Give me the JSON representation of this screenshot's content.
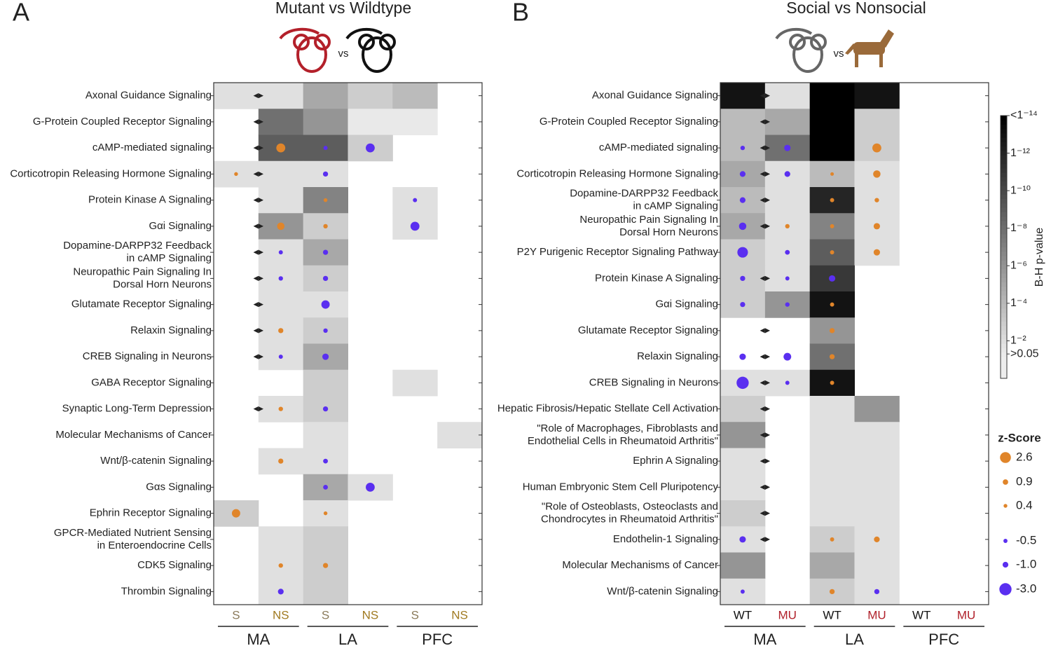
{
  "chart_data": [
    {
      "type": "heatmap",
      "panel": "A",
      "title": "Mutant vs Wildtype",
      "vs": "vs",
      "columns": [
        {
          "name": "S",
          "color": "#8a7a5a"
        },
        {
          "name": "NS",
          "color": "#a07a20"
        },
        {
          "name": "S",
          "color": "#8a7a5a"
        },
        {
          "name": "NS",
          "color": "#a07a20"
        },
        {
          "name": "S",
          "color": "#8a7a5a"
        },
        {
          "name": "NS",
          "color": "#a07a20"
        }
      ],
      "groups": [
        "MA",
        "LA",
        "PFC"
      ],
      "rows": [
        {
          "label": [
            "Axonal Guidance Signaling"
          ],
          "arrow": true,
          "pvalues": [
            2,
            2,
            5,
            3,
            4,
            null
          ],
          "zscores": [
            null,
            null,
            null,
            null,
            null,
            null
          ]
        },
        {
          "label": [
            "G-Protein Coupled Receptor Signaling"
          ],
          "arrow": true,
          "pvalues": [
            null,
            8,
            6,
            1.5,
            1.5,
            null
          ],
          "zscores": [
            null,
            null,
            null,
            null,
            null,
            null
          ]
        },
        {
          "label": [
            "cAMP-mediated signaling"
          ],
          "arrow": true,
          "pvalues": [
            null,
            9,
            9,
            3,
            null,
            null
          ],
          "zscores": [
            null,
            2.0,
            -0.5,
            -2.0,
            null,
            null
          ]
        },
        {
          "label": [
            "Corticotropin Releasing Hormone Signaling"
          ],
          "arrow": true,
          "pvalues": [
            2,
            2,
            2,
            null,
            null,
            null
          ],
          "zscores": [
            0.4,
            null,
            -0.8,
            null,
            null,
            null
          ]
        },
        {
          "label": [
            "Protein Kinase A Signaling"
          ],
          "arrow": true,
          "pvalues": [
            null,
            2,
            7,
            null,
            2,
            null
          ],
          "zscores": [
            null,
            null,
            0.4,
            null,
            -0.5,
            null
          ]
        },
        {
          "label": [
            "Gαi Signaling"
          ],
          "arrow": true,
          "pvalues": [
            null,
            6,
            3,
            null,
            2,
            null
          ],
          "zscores": [
            null,
            1.5,
            0.6,
            null,
            -2.0,
            null
          ]
        },
        {
          "label": [
            "Dopamine-DARPP32 Feedback",
            "in cAMP Signaling"
          ],
          "arrow": true,
          "pvalues": [
            null,
            2,
            5,
            null,
            null,
            null
          ],
          "zscores": [
            null,
            -0.5,
            -0.8,
            null,
            null,
            null
          ]
        },
        {
          "label": [
            "Neuropathic Pain Signaling In",
            "Dorsal Horn Neurons"
          ],
          "arrow": true,
          "pvalues": [
            null,
            2,
            3,
            null,
            null,
            null
          ],
          "zscores": [
            null,
            -0.6,
            -0.8,
            null,
            null,
            null
          ]
        },
        {
          "label": [
            "Glutamate Receptor Signaling"
          ],
          "arrow": true,
          "pvalues": [
            null,
            2,
            2,
            null,
            null,
            null
          ],
          "zscores": [
            null,
            null,
            -1.8,
            null,
            null,
            null
          ]
        },
        {
          "label": [
            "Relaxin Signaling"
          ],
          "arrow": true,
          "pvalues": [
            null,
            2,
            3,
            null,
            null,
            null
          ],
          "zscores": [
            null,
            0.8,
            -0.6,
            null,
            null,
            null
          ]
        },
        {
          "label": [
            "CREB Signaling in Neurons"
          ],
          "arrow": true,
          "pvalues": [
            null,
            2,
            5,
            null,
            null,
            null
          ],
          "zscores": [
            null,
            -0.5,
            -1.2,
            null,
            null,
            null
          ]
        },
        {
          "label": [
            "GABA Receptor Signaling"
          ],
          "arrow": false,
          "pvalues": [
            null,
            null,
            3,
            null,
            2,
            null
          ],
          "zscores": [
            null,
            null,
            null,
            null,
            null,
            null
          ]
        },
        {
          "label": [
            "Synaptic Long-Term Depression"
          ],
          "arrow": true,
          "pvalues": [
            null,
            2,
            3,
            null,
            null,
            null
          ],
          "zscores": [
            null,
            0.6,
            -0.8,
            null,
            null,
            null
          ]
        },
        {
          "label": [
            "Molecular Mechanisms of Cancer"
          ],
          "arrow": false,
          "pvalues": [
            null,
            null,
            2,
            null,
            null,
            2
          ],
          "zscores": [
            null,
            null,
            null,
            null,
            null,
            null
          ]
        },
        {
          "label": [
            "Wnt/β-catenin Signaling"
          ],
          "arrow": false,
          "pvalues": [
            null,
            2,
            2,
            null,
            null,
            null
          ],
          "zscores": [
            null,
            0.8,
            -0.7,
            null,
            null,
            null
          ]
        },
        {
          "label": [
            "Gαs Signaling"
          ],
          "arrow": false,
          "pvalues": [
            null,
            null,
            5,
            2,
            null,
            null
          ],
          "zscores": [
            null,
            null,
            -0.7,
            -2.0,
            null,
            null
          ]
        },
        {
          "label": [
            "Ephrin Receptor Signaling"
          ],
          "arrow": false,
          "pvalues": [
            3,
            null,
            2,
            null,
            null,
            null
          ],
          "zscores": [
            1.8,
            null,
            0.4,
            null,
            null,
            null
          ]
        },
        {
          "label": [
            "GPCR-Mediated Nutrient Sensing",
            "in Enteroendocrine Cells"
          ],
          "arrow": false,
          "pvalues": [
            null,
            2,
            3,
            null,
            null,
            null
          ],
          "zscores": [
            null,
            null,
            null,
            null,
            null,
            null
          ]
        },
        {
          "label": [
            "CDK5 Signaling"
          ],
          "arrow": false,
          "pvalues": [
            null,
            2,
            3,
            null,
            null,
            null
          ],
          "zscores": [
            null,
            0.6,
            0.8,
            null,
            null,
            null
          ]
        },
        {
          "label": [
            "Thrombin Signaling"
          ],
          "arrow": false,
          "pvalues": [
            null,
            2,
            3,
            null,
            null,
            null
          ],
          "zscores": [
            null,
            -1.0,
            null,
            null,
            null,
            null
          ]
        }
      ]
    },
    {
      "type": "heatmap",
      "panel": "B",
      "title": "Social vs Nonsocial",
      "vs": "vs",
      "columns": [
        {
          "name": "WT",
          "color": "#111111"
        },
        {
          "name": "MU",
          "color": "#b0202a"
        },
        {
          "name": "WT",
          "color": "#111111"
        },
        {
          "name": "MU",
          "color": "#b0202a"
        },
        {
          "name": "WT",
          "color": "#111111"
        },
        {
          "name": "MU",
          "color": "#b0202a"
        }
      ],
      "groups": [
        "MA",
        "LA",
        "PFC"
      ],
      "rows": [
        {
          "label": [
            "Axonal Guidance Signaling"
          ],
          "arrow": true,
          "pvalues": [
            13,
            2,
            14,
            13,
            null,
            null
          ],
          "zscores": [
            null,
            null,
            null,
            null,
            null,
            null
          ]
        },
        {
          "label": [
            "G-Protein Coupled Receptor Signaling"
          ],
          "arrow": true,
          "pvalues": [
            4,
            5,
            14,
            3,
            null,
            null
          ],
          "zscores": [
            null,
            null,
            null,
            null,
            null,
            null
          ]
        },
        {
          "label": [
            "cAMP-mediated signaling"
          ],
          "arrow": true,
          "pvalues": [
            4,
            8,
            14,
            3,
            null,
            null
          ],
          "zscores": [
            -0.6,
            -1.2,
            null,
            2.0,
            null,
            null
          ]
        },
        {
          "label": [
            "Corticotropin Releasing Hormone Signaling"
          ],
          "arrow": true,
          "pvalues": [
            5,
            2,
            4,
            2,
            null,
            null
          ],
          "zscores": [
            -1.0,
            -1.0,
            0.3,
            1.5,
            null,
            null
          ]
        },
        {
          "label": [
            "Dopamine-DARPP32 Feedback",
            "in cAMP Signaling"
          ],
          "arrow": true,
          "pvalues": [
            4,
            2,
            12,
            2,
            null,
            null
          ],
          "zscores": [
            -1.0,
            null,
            0.5,
            0.6,
            null,
            null
          ]
        },
        {
          "label": [
            "Neuropathic Pain Signaling In",
            "Dorsal Horn Neurons"
          ],
          "arrow": true,
          "pvalues": [
            5,
            2,
            7,
            2,
            null,
            null
          ],
          "zscores": [
            -1.5,
            0.6,
            0.5,
            1.2,
            null,
            null
          ]
        },
        {
          "label": [
            "P2Y Purigenic Receptor Signaling Pathway"
          ],
          "arrow": false,
          "pvalues": [
            3,
            2,
            9,
            2,
            null,
            null
          ],
          "zscores": [
            -2.5,
            -0.7,
            0.5,
            1.2,
            null,
            null
          ]
        },
        {
          "label": [
            "Protein Kinase A Signaling"
          ],
          "arrow": true,
          "pvalues": [
            3,
            2,
            11,
            null,
            null,
            null
          ],
          "zscores": [
            -0.8,
            -0.5,
            -1.2,
            null,
            null,
            null
          ]
        },
        {
          "label": [
            "Gαi Signaling"
          ],
          "arrow": false,
          "pvalues": [
            3,
            6,
            13,
            null,
            null,
            null
          ],
          "zscores": [
            -0.8,
            -0.6,
            0.5,
            null,
            null,
            null
          ]
        },
        {
          "label": [
            "Glutamate Receptor Signaling"
          ],
          "arrow": true,
          "pvalues": [
            null,
            null,
            6,
            null,
            null,
            null
          ],
          "zscores": [
            null,
            null,
            0.8,
            null,
            null,
            null
          ]
        },
        {
          "label": [
            "Relaxin Signaling"
          ],
          "arrow": true,
          "pvalues": [
            null,
            null,
            8,
            null,
            null,
            null
          ],
          "zscores": [
            -1.2,
            -1.6,
            0.8,
            null,
            null,
            null
          ]
        },
        {
          "label": [
            "CREB Signaling in Neurons"
          ],
          "arrow": true,
          "pvalues": [
            2,
            2,
            13,
            null,
            null,
            null
          ],
          "zscores": [
            -3.0,
            -0.5,
            0.5,
            null,
            null,
            null
          ]
        },
        {
          "label": [
            "Hepatic Fibrosis/Hepatic Stellate Cell Activation"
          ],
          "arrow": true,
          "pvalues": [
            3,
            null,
            2,
            6,
            null,
            null
          ],
          "zscores": [
            null,
            null,
            null,
            null,
            null,
            null
          ]
        },
        {
          "label": [
            "\"Role of Macrophages, Fibroblasts and",
            "Endothelial Cells in Rheumatoid Arthritis\""
          ],
          "arrow": true,
          "pvalues": [
            6,
            null,
            2,
            2,
            null,
            null
          ],
          "zscores": [
            null,
            null,
            null,
            null,
            null,
            null
          ]
        },
        {
          "label": [
            "Ephrin A Signaling"
          ],
          "arrow": true,
          "pvalues": [
            2,
            null,
            2,
            2,
            null,
            null
          ],
          "zscores": [
            null,
            null,
            null,
            null,
            null,
            null
          ]
        },
        {
          "label": [
            "Human Embryonic Stem Cell Pluripotency"
          ],
          "arrow": true,
          "pvalues": [
            2,
            null,
            2,
            2,
            null,
            null
          ],
          "zscores": [
            null,
            null,
            null,
            null,
            null,
            null
          ]
        },
        {
          "label": [
            "\"Role of Osteoblasts, Osteoclasts and",
            "Chondrocytes in Rheumatoid Arthritis\""
          ],
          "arrow": true,
          "pvalues": [
            3,
            null,
            2,
            2,
            null,
            null
          ],
          "zscores": [
            null,
            null,
            null,
            null,
            null,
            null
          ]
        },
        {
          "label": [
            "Endothelin-1 Signaling"
          ],
          "arrow": true,
          "pvalues": [
            2,
            null,
            3,
            2,
            null,
            null
          ],
          "zscores": [
            -1.2,
            null,
            0.5,
            1.0,
            null,
            null
          ]
        },
        {
          "label": [
            "Molecular Mechanisms of Cancer"
          ],
          "arrow": false,
          "pvalues": [
            6,
            null,
            5,
            2,
            null,
            null
          ],
          "zscores": [
            null,
            null,
            null,
            null,
            null,
            null
          ]
        },
        {
          "label": [
            "Wnt/β-catenin Signaling"
          ],
          "arrow": false,
          "pvalues": [
            2,
            null,
            3,
            2,
            null,
            null
          ],
          "zscores": [
            -0.5,
            null,
            0.8,
            -0.8,
            null,
            null
          ]
        }
      ]
    }
  ],
  "colorbar": {
    "label": "B-H p-value",
    "lim": [
      0,
      14
    ],
    "ticks": [
      {
        "value": 14,
        "label": "<1⁻¹⁴"
      },
      {
        "value": 12,
        "label": "1⁻¹²"
      },
      {
        "value": 10,
        "label": "1⁻¹⁰"
      },
      {
        "value": 8,
        "label": "1⁻⁸"
      },
      {
        "value": 6,
        "label": "1⁻⁶"
      },
      {
        "value": 4,
        "label": "1⁻⁴"
      },
      {
        "value": 2,
        "label": "1⁻²"
      },
      {
        "value": 1.3,
        "label": ">0.05"
      }
    ]
  },
  "zscore_legend": {
    "title": "z-Score",
    "positive_color": "#e0852a",
    "negative_color": "#5a2ff0",
    "values": [
      2.6,
      0.9,
      0.4,
      -0.5,
      {
        "value": -1.0,
        "label": "-1.0"
      },
      {
        "value": -3.0,
        "label": "-3.0"
      }
    ]
  }
}
